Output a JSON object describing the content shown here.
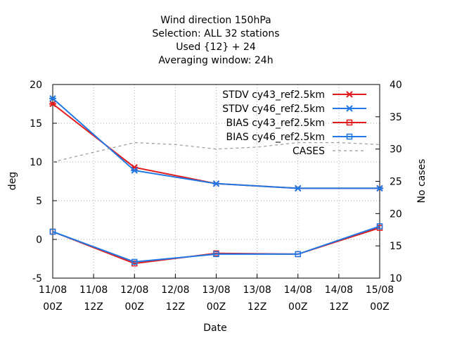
{
  "chart_data": {
    "type": "line",
    "title_lines": [
      "Wind direction 150hPa",
      "Selection: ALL      32 stations",
      "Used {12} + 24",
      "Averaging window: 24h"
    ],
    "xlabel": "Date",
    "ylabel": "deg",
    "y2label": "No cases",
    "x_ticks": [
      {
        "x": 0,
        "line1": "11/08",
        "line2": "00Z"
      },
      {
        "x": 12,
        "line1": "11/08",
        "line2": "12Z"
      },
      {
        "x": 24,
        "line1": "12/08",
        "line2": "00Z"
      },
      {
        "x": 36,
        "line1": "12/08",
        "line2": "12Z"
      },
      {
        "x": 48,
        "line1": "13/08",
        "line2": "00Z"
      },
      {
        "x": 60,
        "line1": "13/08",
        "line2": "12Z"
      },
      {
        "x": 72,
        "line1": "14/08",
        "line2": "00Z"
      },
      {
        "x": 84,
        "line1": "14/08",
        "line2": "12Z"
      },
      {
        "x": 96,
        "line1": "15/08",
        "line2": "00Z"
      }
    ],
    "xlim": [
      0,
      96
    ],
    "ylim": [
      -5,
      20
    ],
    "y_ticks": [
      -5,
      0,
      5,
      10,
      15,
      20
    ],
    "y2lim": [
      10,
      40
    ],
    "y2_ticks": [
      10,
      15,
      20,
      25,
      30,
      35,
      40
    ],
    "legend_position": "top-right",
    "grid": true,
    "series": [
      {
        "name": "STDV cy43_ref2.5km",
        "axis": "y",
        "color": "#e31a1c",
        "marker": "x",
        "dash": false,
        "points": [
          [
            0,
            17.5
          ],
          [
            24,
            9.3
          ],
          [
            48,
            7.2
          ],
          [
            72,
            6.6
          ],
          [
            96,
            6.6
          ]
        ]
      },
      {
        "name": "STDV cy46_ref2.5km",
        "axis": "y",
        "color": "#1f78e4",
        "marker": "x",
        "dash": false,
        "points": [
          [
            0,
            18.2
          ],
          [
            24,
            8.9
          ],
          [
            48,
            7.2
          ],
          [
            72,
            6.6
          ],
          [
            96,
            6.6
          ]
        ]
      },
      {
        "name": "BIAS cy43_ref2.5km",
        "axis": "y",
        "color": "#e31a1c",
        "marker": "square",
        "dash": false,
        "points": [
          [
            0,
            1.0
          ],
          [
            24,
            -3.1
          ],
          [
            48,
            -1.8
          ],
          [
            72,
            -1.9
          ],
          [
            96,
            1.5
          ]
        ]
      },
      {
        "name": "BIAS cy46_ref2.5km",
        "axis": "y",
        "color": "#1f78e4",
        "marker": "square",
        "dash": false,
        "points": [
          [
            0,
            1.0
          ],
          [
            24,
            -2.9
          ],
          [
            48,
            -1.9
          ],
          [
            72,
            -1.9
          ],
          [
            96,
            1.7
          ]
        ]
      },
      {
        "name": "CASES",
        "axis": "y2",
        "color": "#999999",
        "marker": "none",
        "dash": true,
        "points": [
          [
            0,
            28
          ],
          [
            12,
            29.5
          ],
          [
            24,
            31
          ],
          [
            36,
            30.7
          ],
          [
            48,
            30
          ],
          [
            60,
            30.3
          ],
          [
            72,
            31
          ],
          [
            84,
            31
          ],
          [
            96,
            30.7
          ]
        ]
      }
    ]
  }
}
